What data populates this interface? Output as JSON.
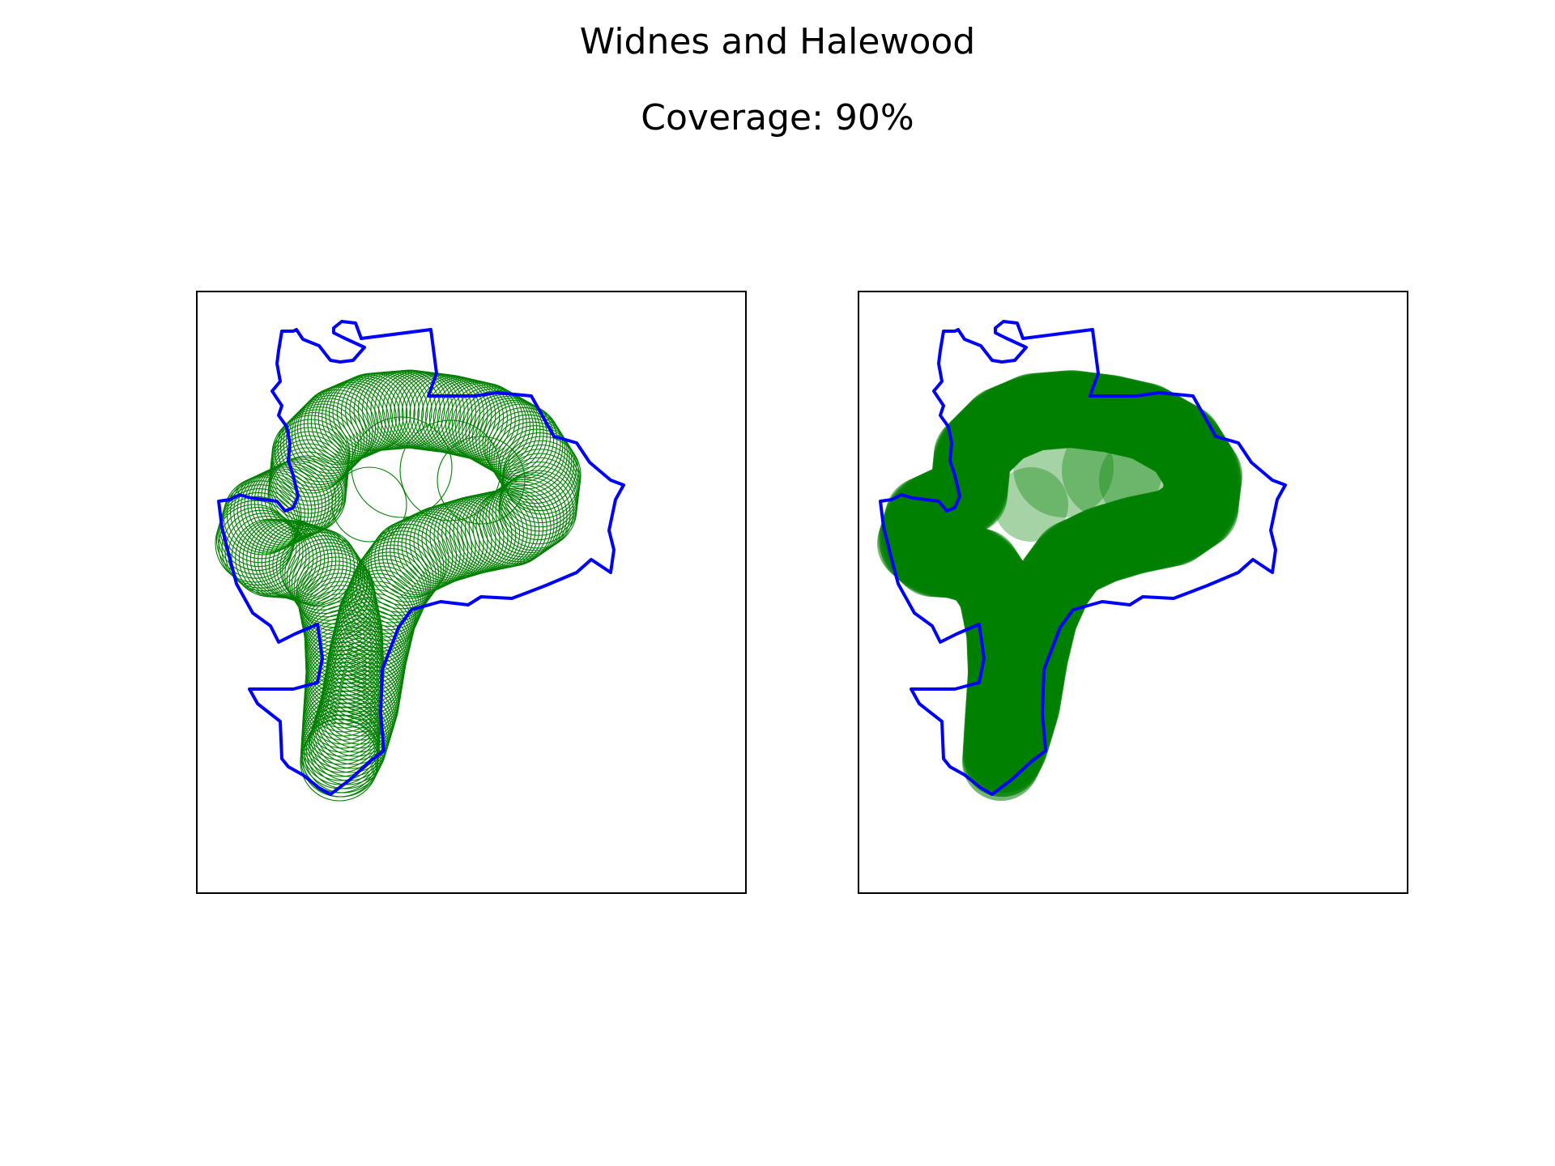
{
  "figure": {
    "title": "Widnes and Halewood",
    "subtitle": "Coverage: 90%"
  },
  "colors": {
    "boundary": "#0000ff",
    "coverage": "#008000",
    "frame": "#000000",
    "background": "#ffffff"
  },
  "panels": [
    {
      "style": "outline-circles"
    },
    {
      "style": "filled-circles"
    }
  ],
  "coverage_percent": 90
}
